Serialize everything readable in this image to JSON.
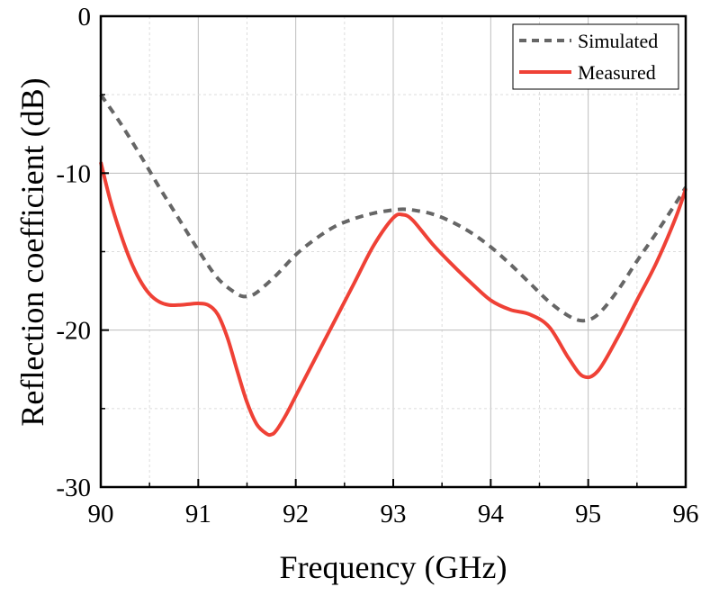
{
  "chart_data": {
    "type": "line",
    "title": "",
    "xlabel": "Frequency (GHz)",
    "ylabel": "Reflection coefficient (dB)",
    "xlim": [
      90,
      96
    ],
    "ylim": [
      -30,
      0
    ],
    "x_ticks": [
      "90",
      "91",
      "92",
      "93",
      "94",
      "95",
      "96"
    ],
    "y_ticks": [
      "0",
      "-10",
      "-20",
      "-30"
    ],
    "grid": true,
    "legend_position": "top-right",
    "series": [
      {
        "name": "Simulated",
        "color": "#666666",
        "style": "dashed",
        "x": [
          90.0,
          90.2,
          90.4,
          90.6,
          90.8,
          91.0,
          91.2,
          91.4,
          91.5,
          91.6,
          91.8,
          92.0,
          92.2,
          92.4,
          92.6,
          92.8,
          93.0,
          93.1,
          93.2,
          93.4,
          93.6,
          93.8,
          94.0,
          94.2,
          94.4,
          94.6,
          94.8,
          94.95,
          95.1,
          95.3,
          95.5,
          95.7,
          95.9,
          96.0
        ],
        "y": [
          -5.0,
          -6.8,
          -8.8,
          -10.9,
          -12.9,
          -14.9,
          -16.7,
          -17.7,
          -17.85,
          -17.6,
          -16.5,
          -15.2,
          -14.2,
          -13.4,
          -12.9,
          -12.55,
          -12.35,
          -12.3,
          -12.35,
          -12.6,
          -13.1,
          -13.8,
          -14.7,
          -15.8,
          -17.0,
          -18.2,
          -19.1,
          -19.4,
          -19.0,
          -17.5,
          -15.6,
          -13.8,
          -11.9,
          -10.9
        ]
      },
      {
        "name": "Measured",
        "color": "#ef4136",
        "style": "solid",
        "x": [
          90.0,
          90.1,
          90.2,
          90.3,
          90.4,
          90.5,
          90.6,
          90.7,
          90.8,
          90.9,
          91.0,
          91.1,
          91.2,
          91.3,
          91.4,
          91.5,
          91.6,
          91.7,
          91.75,
          91.8,
          91.9,
          92.0,
          92.2,
          92.4,
          92.6,
          92.8,
          93.0,
          93.1,
          93.2,
          93.4,
          93.6,
          93.8,
          94.0,
          94.2,
          94.4,
          94.6,
          94.8,
          94.95,
          95.1,
          95.3,
          95.5,
          95.7,
          95.9,
          96.0
        ],
        "y": [
          -9.3,
          -11.8,
          -13.8,
          -15.5,
          -16.8,
          -17.7,
          -18.2,
          -18.4,
          -18.4,
          -18.35,
          -18.3,
          -18.4,
          -19.0,
          -20.5,
          -22.6,
          -24.6,
          -26.0,
          -26.6,
          -26.65,
          -26.4,
          -25.4,
          -24.2,
          -21.8,
          -19.4,
          -17.0,
          -14.6,
          -12.85,
          -12.65,
          -13.0,
          -14.5,
          -15.8,
          -17.0,
          -18.1,
          -18.7,
          -19.0,
          -19.8,
          -21.8,
          -22.95,
          -22.6,
          -20.5,
          -18.1,
          -15.7,
          -12.8,
          -11.0
        ]
      }
    ]
  }
}
